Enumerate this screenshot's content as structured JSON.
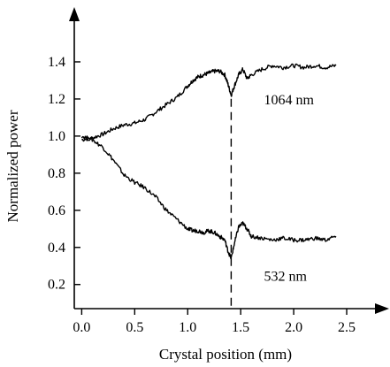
{
  "chart_data": {
    "type": "line",
    "title": "",
    "xlabel": "Crystal position (mm)",
    "ylabel": "Normalized power",
    "xlim": [
      -0.07,
      2.75
    ],
    "ylim": [
      0.07,
      1.6
    ],
    "xticks": [
      0.0,
      0.5,
      1.0,
      1.5,
      2.0,
      2.5
    ],
    "xtick_labels": [
      "0.0",
      "0.5",
      "1.0",
      "1.5",
      "2.0",
      "2.5"
    ],
    "yticks": [
      0.2,
      0.4,
      0.6,
      0.8,
      1.0,
      1.2,
      1.4
    ],
    "ytick_labels": [
      "0.2",
      "0.4",
      "0.6",
      "0.8",
      "1.0",
      "1.2",
      "1.4"
    ],
    "grid": false,
    "legend": "none",
    "annotations": [
      {
        "text": "1064 nm",
        "x": 1.72,
        "y": 1.17
      },
      {
        "text": "532 nm",
        "x": 1.72,
        "y": 0.22
      }
    ],
    "vertical_line": {
      "x": 1.41,
      "style": "dashed"
    },
    "series": [
      {
        "label": "1064 nm",
        "x": [
          0.0,
          0.1,
          0.2,
          0.3,
          0.4,
          0.5,
          0.6,
          0.7,
          0.8,
          0.9,
          1.0,
          1.05,
          1.1,
          1.15,
          1.2,
          1.25,
          1.3,
          1.35,
          1.38,
          1.41,
          1.44,
          1.48,
          1.52,
          1.56,
          1.6,
          1.7,
          1.8,
          1.9,
          2.0,
          2.1,
          2.2,
          2.3,
          2.4
        ],
        "y": [
          0.98,
          0.99,
          1.01,
          1.04,
          1.06,
          1.07,
          1.09,
          1.13,
          1.17,
          1.21,
          1.27,
          1.3,
          1.32,
          1.33,
          1.34,
          1.35,
          1.35,
          1.33,
          1.28,
          1.22,
          1.27,
          1.33,
          1.36,
          1.31,
          1.33,
          1.36,
          1.38,
          1.37,
          1.38,
          1.37,
          1.38,
          1.37,
          1.38
        ]
      },
      {
        "label": "532 nm",
        "x": [
          0.0,
          0.1,
          0.2,
          0.3,
          0.4,
          0.5,
          0.6,
          0.7,
          0.8,
          0.9,
          1.0,
          1.05,
          1.1,
          1.15,
          1.2,
          1.25,
          1.3,
          1.35,
          1.38,
          1.41,
          1.44,
          1.48,
          1.52,
          1.56,
          1.6,
          1.7,
          1.8,
          1.9,
          2.0,
          2.1,
          2.2,
          2.3,
          2.4
        ],
        "y": [
          1.0,
          0.98,
          0.94,
          0.87,
          0.79,
          0.75,
          0.72,
          0.67,
          0.6,
          0.55,
          0.5,
          0.49,
          0.49,
          0.48,
          0.49,
          0.48,
          0.46,
          0.44,
          0.38,
          0.34,
          0.42,
          0.51,
          0.53,
          0.5,
          0.46,
          0.45,
          0.44,
          0.45,
          0.44,
          0.44,
          0.45,
          0.44,
          0.46
        ]
      }
    ]
  }
}
